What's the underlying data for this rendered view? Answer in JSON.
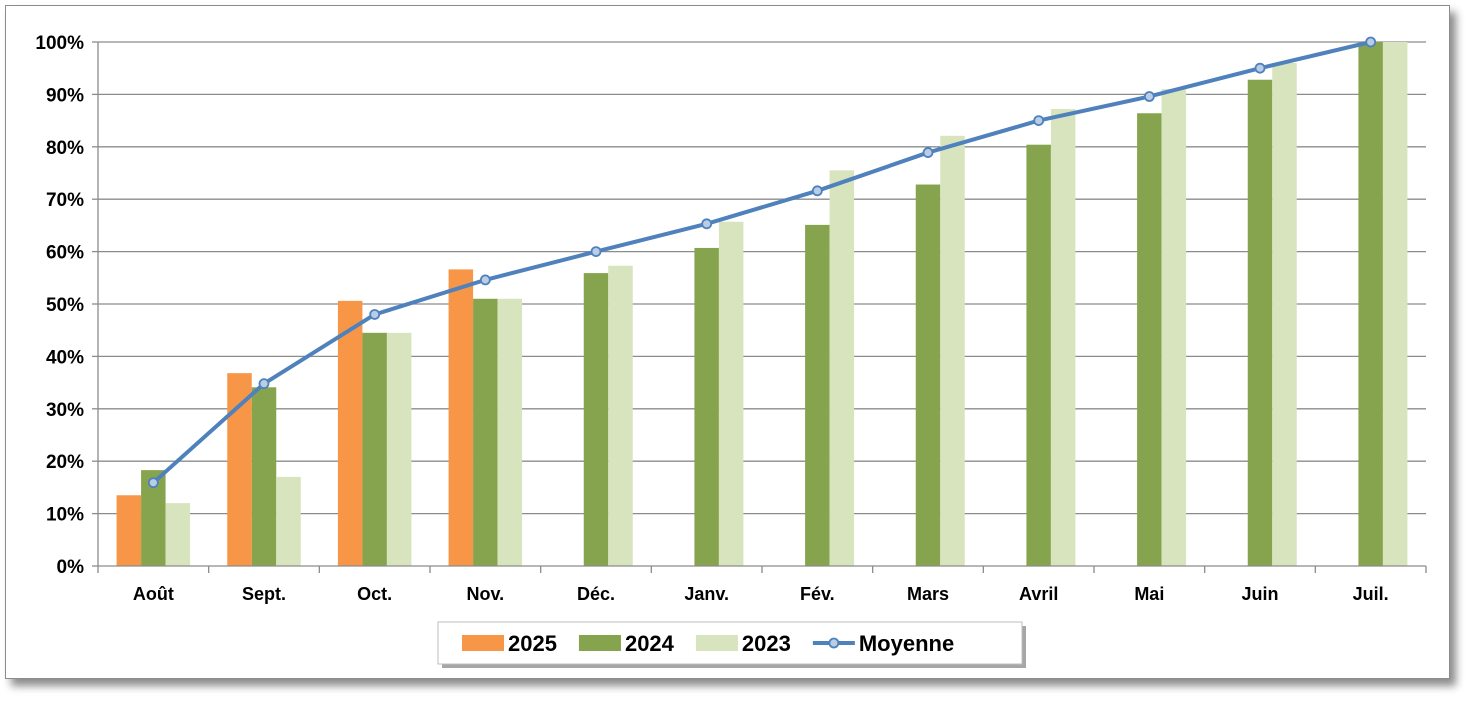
{
  "chart_data": {
    "type": "bar",
    "categories": [
      "Août",
      "Sept.",
      "Oct.",
      "Nov.",
      "Déc.",
      "Janv.",
      "Fév.",
      "Mars",
      "Avril",
      "Mai",
      "Juin",
      "Juil."
    ],
    "series": [
      {
        "name": "2025",
        "type": "bar",
        "color": "#f79646",
        "values": [
          13.5,
          36.8,
          50.6,
          56.6,
          null,
          null,
          null,
          null,
          null,
          null,
          null,
          null
        ]
      },
      {
        "name": "2024",
        "type": "bar",
        "color": "#86a44d",
        "values": [
          18.3,
          34.1,
          44.5,
          51.0,
          55.9,
          60.7,
          65.1,
          72.8,
          80.4,
          86.4,
          92.8,
          100
        ]
      },
      {
        "name": "2023",
        "type": "bar",
        "color": "#d7e4bd",
        "values": [
          12.0,
          17.0,
          44.5,
          51.0,
          57.3,
          65.7,
          75.5,
          82.1,
          87.2,
          91.0,
          96.0,
          100
        ]
      },
      {
        "name": "Moyenne",
        "type": "line",
        "color": "#4f81bd",
        "values": [
          15.9,
          34.8,
          48.0,
          54.6,
          60.0,
          65.3,
          71.6,
          78.9,
          85.0,
          89.6,
          95.0,
          100
        ]
      }
    ],
    "y_ticks": [
      "0%",
      "10%",
      "20%",
      "30%",
      "40%",
      "50%",
      "60%",
      "70%",
      "80%",
      "90%",
      "100%"
    ],
    "ylim": [
      0,
      100
    ],
    "grid": true,
    "legend_position": "bottom-center",
    "title": "",
    "xlabel": "",
    "ylabel": ""
  }
}
